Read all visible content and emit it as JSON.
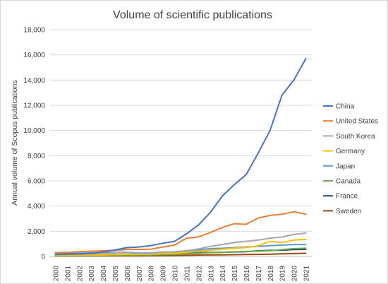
{
  "chart_data": {
    "type": "line",
    "title": "Volume of scientific publications",
    "ylabel": "Annual volume of Scopus publications",
    "xlabel": "",
    "ylim": [
      0,
      18000
    ],
    "y_ticks": [
      "0",
      "2,000",
      "4,000",
      "6,000",
      "8,000",
      "10,000",
      "12,000",
      "14,000",
      "16,000",
      "18,000"
    ],
    "x": [
      "2000",
      "2001",
      "2002",
      "2003",
      "2004",
      "2005",
      "2006",
      "2007",
      "2008",
      "2009",
      "2010",
      "2011",
      "2012",
      "2013",
      "2014",
      "2015",
      "2016",
      "2017",
      "2018",
      "2019",
      "2020",
      "2021"
    ],
    "grid": "horizontal",
    "legend": "right",
    "series": [
      {
        "name": "China",
        "color": "#4472c4",
        "values": [
          150,
          180,
          200,
          250,
          350,
          520,
          700,
          750,
          850,
          1050,
          1200,
          1800,
          2500,
          3500,
          4800,
          5700,
          6500,
          8200,
          10000,
          12800,
          14000,
          15700
        ]
      },
      {
        "name": "United States",
        "color": "#ed7d31",
        "values": [
          300,
          320,
          380,
          420,
          450,
          480,
          560,
          560,
          580,
          750,
          900,
          1450,
          1550,
          1900,
          2300,
          2600,
          2550,
          3050,
          3250,
          3350,
          3550,
          3350
        ]
      },
      {
        "name": "South Korea",
        "color": "#a5a5a5",
        "values": [
          150,
          160,
          180,
          200,
          230,
          280,
          300,
          230,
          250,
          330,
          380,
          450,
          600,
          800,
          950,
          1100,
          1200,
          1300,
          1450,
          1550,
          1750,
          1850
        ]
      },
      {
        "name": "Germany",
        "color": "#ffc000",
        "values": [
          80,
          90,
          100,
          110,
          120,
          150,
          180,
          170,
          180,
          220,
          250,
          320,
          400,
          500,
          580,
          650,
          700,
          850,
          1200,
          1100,
          1300,
          1350
        ]
      },
      {
        "name": "Japan",
        "color": "#5b9bd5",
        "values": [
          250,
          250,
          260,
          280,
          300,
          330,
          330,
          270,
          280,
          350,
          350,
          420,
          520,
          620,
          650,
          700,
          750,
          800,
          850,
          900,
          950,
          950
        ]
      },
      {
        "name": "Canada",
        "color": "#70ad47",
        "values": [
          50,
          55,
          60,
          70,
          80,
          90,
          110,
          110,
          120,
          150,
          170,
          200,
          250,
          300,
          330,
          370,
          400,
          420,
          450,
          550,
          620,
          650
        ]
      },
      {
        "name": "France",
        "color": "#264478",
        "values": [
          60,
          65,
          70,
          80,
          90,
          110,
          130,
          130,
          150,
          180,
          200,
          240,
          300,
          320,
          330,
          360,
          380,
          450,
          480,
          500,
          550,
          560
        ]
      },
      {
        "name": "Sweden",
        "color": "#9e480e",
        "values": [
          30,
          30,
          35,
          40,
          45,
          50,
          55,
          55,
          60,
          70,
          80,
          90,
          110,
          120,
          130,
          140,
          150,
          160,
          180,
          200,
          230,
          250
        ]
      }
    ]
  }
}
